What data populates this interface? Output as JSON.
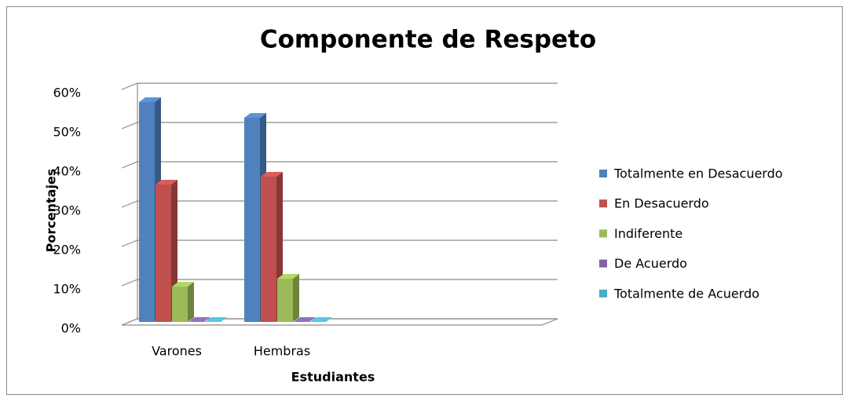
{
  "chart_data": {
    "type": "bar3d",
    "title": "Componente de Respeto",
    "x_label": "Estudiantes",
    "y_label": "Porcentajes",
    "categories": [
      "Varones",
      "Hembras"
    ],
    "series": [
      {
        "name": "Totalmente en Desacuerdo",
        "color": "#4f81bd",
        "values": [
          56,
          52
        ]
      },
      {
        "name": "En Desacuerdo",
        "color": "#c0504d",
        "values": [
          35,
          37
        ]
      },
      {
        "name": "Indiferente",
        "color": "#9bbb59",
        "values": [
          9,
          11
        ]
      },
      {
        "name": "De Acuerdo",
        "color": "#8064a2",
        "values": [
          0,
          0
        ]
      },
      {
        "name": "Totalmente de Acuerdo",
        "color": "#4bacc6",
        "values": [
          0,
          0
        ]
      }
    ],
    "ylim": [
      0,
      60
    ],
    "yticks": [
      {
        "value": 0,
        "label": "0%"
      },
      {
        "value": 10,
        "label": "10%"
      },
      {
        "value": 20,
        "label": "20%"
      },
      {
        "value": 30,
        "label": "30%"
      },
      {
        "value": 40,
        "label": "40%"
      },
      {
        "value": 50,
        "label": "50%"
      },
      {
        "value": 60,
        "label": "60%"
      }
    ],
    "grid": true,
    "legend": "right"
  }
}
